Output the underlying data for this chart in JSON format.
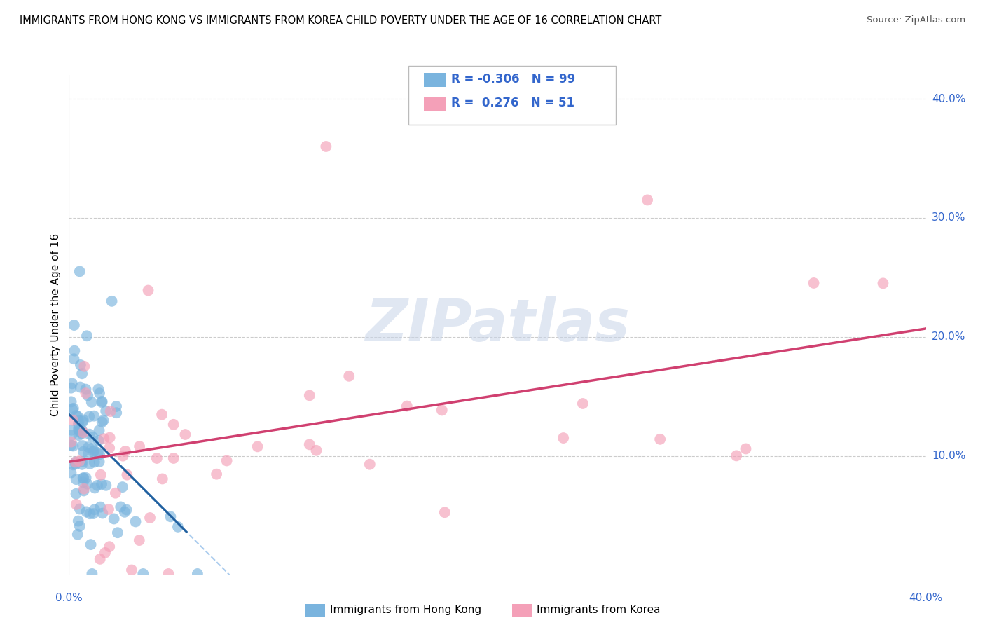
{
  "title": "IMMIGRANTS FROM HONG KONG VS IMMIGRANTS FROM KOREA CHILD POVERTY UNDER THE AGE OF 16 CORRELATION CHART",
  "source": "Source: ZipAtlas.com",
  "ylabel": "Child Poverty Under the Age of 16",
  "hk_color": "#7ab4de",
  "korea_color": "#f4a0b8",
  "hk_line_color": "#2060a0",
  "korea_line_color": "#d04070",
  "hk_R": -0.306,
  "hk_N": 99,
  "korea_R": 0.276,
  "korea_N": 51,
  "xlim": [
    0.0,
    0.4
  ],
  "ylim": [
    0.0,
    0.4
  ],
  "background_color": "#ffffff",
  "watermark": "ZIPatlas",
  "grid_color": "#cccccc"
}
